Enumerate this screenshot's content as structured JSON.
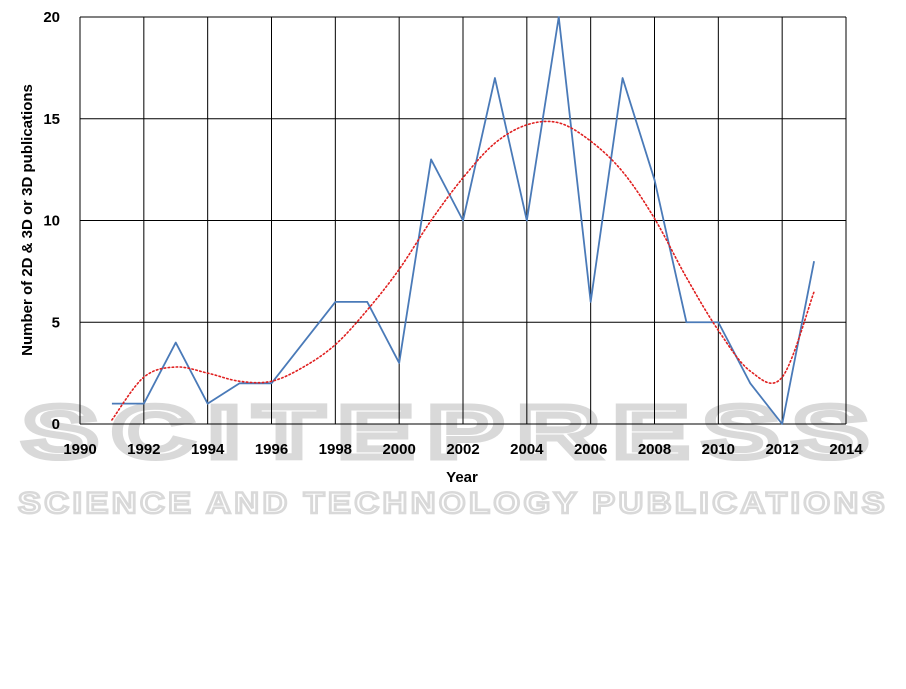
{
  "watermark": {
    "main": "SCITEPRESS",
    "sub": "SCIENCE AND TECHNOLOGY PUBLICATIONS",
    "color": "#d9d9d9"
  },
  "chart_data": {
    "type": "line",
    "title": "",
    "xlabel": "Year",
    "ylabel": "Number of 2D & 3D or 3D publications",
    "xlim": [
      1990,
      2014
    ],
    "ylim": [
      0,
      20
    ],
    "xticks": [
      1990,
      1992,
      1994,
      1996,
      1998,
      2000,
      2002,
      2004,
      2006,
      2008,
      2010,
      2012,
      2014
    ],
    "yticks": [
      0,
      5,
      10,
      15,
      20
    ],
    "grid": true,
    "legend": "none",
    "series": [
      {
        "style": "solid",
        "color": "#4a7ab8",
        "x": [
          1991,
          1992,
          1993,
          1994,
          1995,
          1996,
          1997,
          1998,
          1999,
          2000,
          2001,
          2002,
          2003,
          2004,
          2005,
          2006,
          2007,
          2008,
          2009,
          2010,
          2011,
          2012,
          2013
        ],
        "y": [
          1,
          1,
          4,
          1,
          2,
          2,
          4,
          6,
          6,
          3,
          13,
          10,
          17,
          10,
          20,
          6,
          17,
          12,
          5,
          5,
          2,
          0,
          8
        ]
      },
      {
        "style": "dotted trend",
        "color": "#e02020",
        "x": [
          1991,
          1992,
          1993,
          1994,
          1995,
          1996,
          1997,
          1998,
          1999,
          2000,
          2001,
          2002,
          2003,
          2004,
          2005,
          2006,
          2007,
          2008,
          2009,
          2010,
          2011,
          2012,
          2013
        ],
        "y": [
          0.2,
          2.3,
          2.8,
          2.5,
          2.1,
          2.1,
          2.8,
          3.9,
          5.6,
          7.6,
          10.0,
          12.1,
          13.8,
          14.7,
          14.8,
          13.9,
          12.4,
          10.1,
          7.2,
          4.6,
          2.6,
          2.3,
          6.5
        ]
      }
    ]
  }
}
